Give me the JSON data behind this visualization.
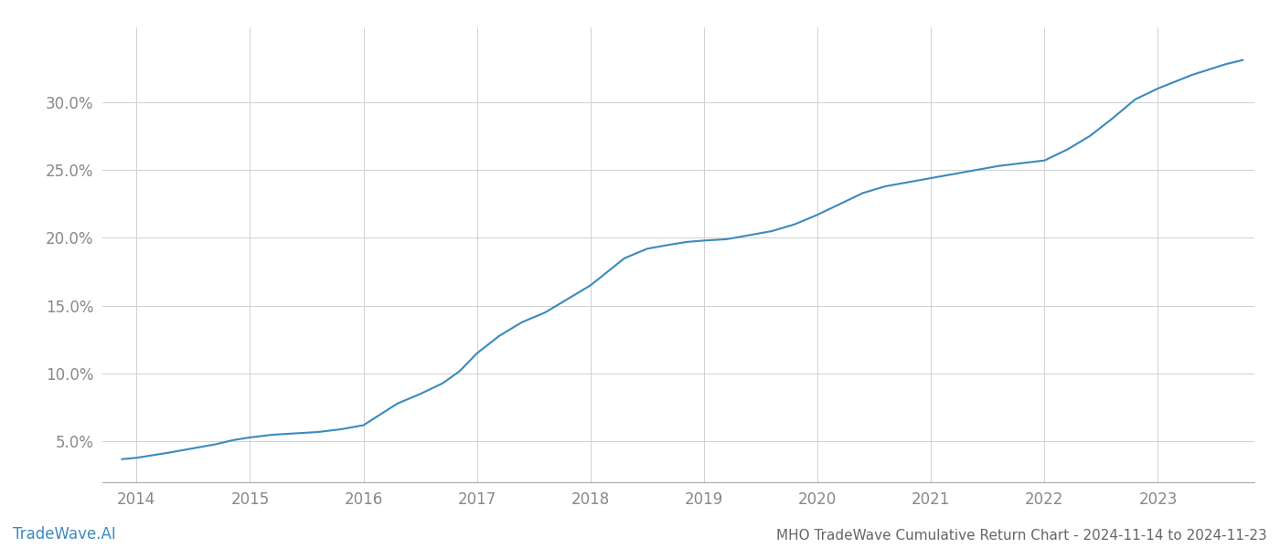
{
  "title": "MHO TradeWave Cumulative Return Chart - 2024-11-14 to 2024-11-23",
  "watermark": "TradeWave.AI",
  "line_color": "#3a8abf",
  "background_color": "#ffffff",
  "grid_color": "#d0d0d0",
  "x_years": [
    2014,
    2015,
    2016,
    2017,
    2018,
    2019,
    2020,
    2021,
    2022,
    2023
  ],
  "x_values": [
    2013.87,
    2014.0,
    2014.15,
    2014.3,
    2014.5,
    2014.7,
    2014.85,
    2015.0,
    2015.2,
    2015.4,
    2015.6,
    2015.8,
    2016.0,
    2016.15,
    2016.3,
    2016.5,
    2016.7,
    2016.85,
    2017.0,
    2017.2,
    2017.4,
    2017.6,
    2017.8,
    2018.0,
    2018.15,
    2018.3,
    2018.5,
    2018.7,
    2018.85,
    2019.0,
    2019.2,
    2019.4,
    2019.6,
    2019.8,
    2020.0,
    2020.2,
    2020.4,
    2020.6,
    2020.8,
    2021.0,
    2021.2,
    2021.4,
    2021.6,
    2021.8,
    2022.0,
    2022.2,
    2022.4,
    2022.6,
    2022.8,
    2023.0,
    2023.3,
    2023.6,
    2023.75
  ],
  "y_values": [
    3.7,
    3.8,
    4.0,
    4.2,
    4.5,
    4.8,
    5.1,
    5.3,
    5.5,
    5.6,
    5.7,
    5.9,
    6.2,
    7.0,
    7.8,
    8.5,
    9.3,
    10.2,
    11.5,
    12.8,
    13.8,
    14.5,
    15.5,
    16.5,
    17.5,
    18.5,
    19.2,
    19.5,
    19.7,
    19.8,
    19.9,
    20.2,
    20.5,
    21.0,
    21.7,
    22.5,
    23.3,
    23.8,
    24.1,
    24.4,
    24.7,
    25.0,
    25.3,
    25.5,
    25.7,
    26.5,
    27.5,
    28.8,
    30.2,
    31.0,
    32.0,
    32.8,
    33.1
  ],
  "yticks": [
    5.0,
    10.0,
    15.0,
    20.0,
    25.0,
    30.0
  ],
  "ylim": [
    2.0,
    35.5
  ],
  "xlim": [
    2013.7,
    2023.85
  ],
  "title_fontsize": 11,
  "watermark_fontsize": 12,
  "axis_label_color": "#888888",
  "title_color": "#666666"
}
